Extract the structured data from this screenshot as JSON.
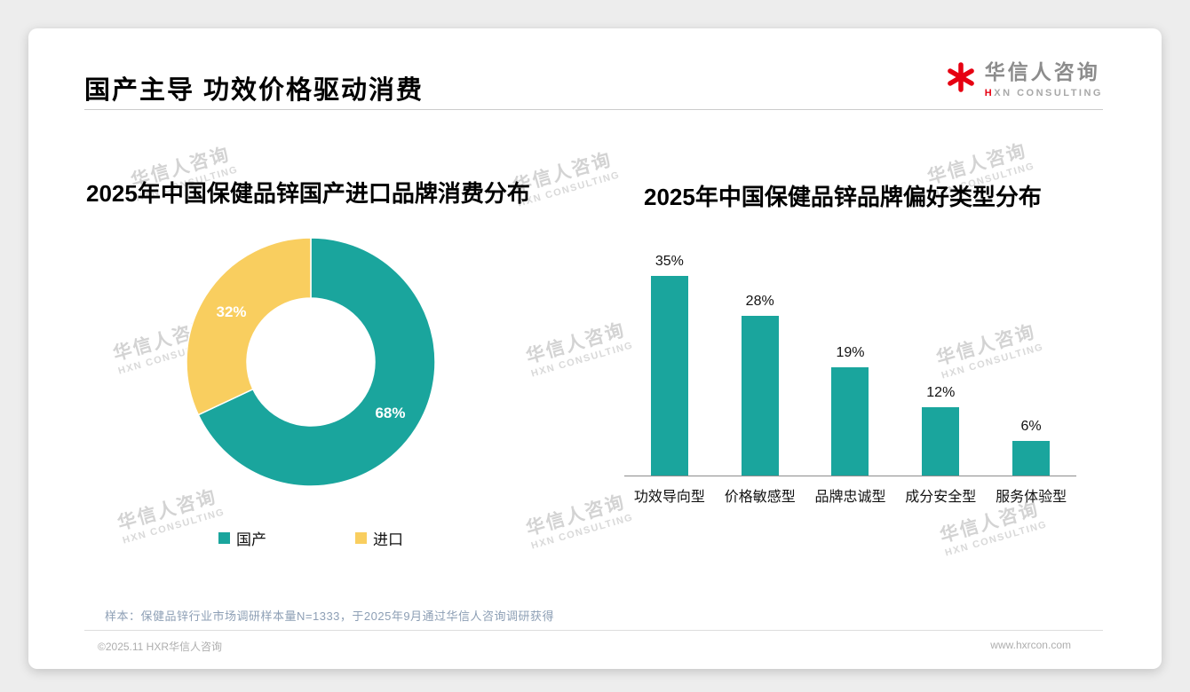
{
  "header": {
    "title": "国产主导 功效价格驱动消费"
  },
  "logo": {
    "cn": "华信人咨询",
    "en_prefix": "H",
    "en_rest": "XN CONSULTING"
  },
  "watermark": {
    "cn": "华信人咨询",
    "en": "HXN CONSULTING"
  },
  "colors": {
    "teal": "#1aa59d",
    "yellow": "#f9ce5f",
    "red": "#e60012"
  },
  "footer": {
    "sample_note": "样本：保健品锌行业市场调研样本量N=1333，于2025年9月通过华信人咨询调研获得",
    "left": "©2025.11 HXR华信人咨询",
    "right": "www.hxrcon.com"
  },
  "chart_data": [
    {
      "type": "pie",
      "donut": true,
      "title": "2025年中国保健品锌国产进口品牌消费分布",
      "labels": [
        "国产",
        "进口"
      ],
      "values": [
        68,
        32
      ],
      "data_labels": [
        "68%",
        "32%"
      ],
      "colors": [
        "#1aa59d",
        "#f9ce5f"
      ],
      "legend_position": "bottom",
      "start_angle_deg": 0,
      "direction": "clockwise"
    },
    {
      "type": "bar",
      "title": "2025年中国保健品锌品牌偏好类型分布",
      "categories": [
        "功效导向型",
        "价格敏感型",
        "品牌忠诚型",
        "成分安全型",
        "服务体验型"
      ],
      "values": [
        35,
        28,
        19,
        12,
        6
      ],
      "value_labels": [
        "35%",
        "28%",
        "19%",
        "12%",
        "6%"
      ],
      "bar_color": "#1aa59d",
      "ylim": [
        0,
        35
      ],
      "grid": false,
      "legend": false,
      "xlabel": "",
      "ylabel": ""
    }
  ]
}
